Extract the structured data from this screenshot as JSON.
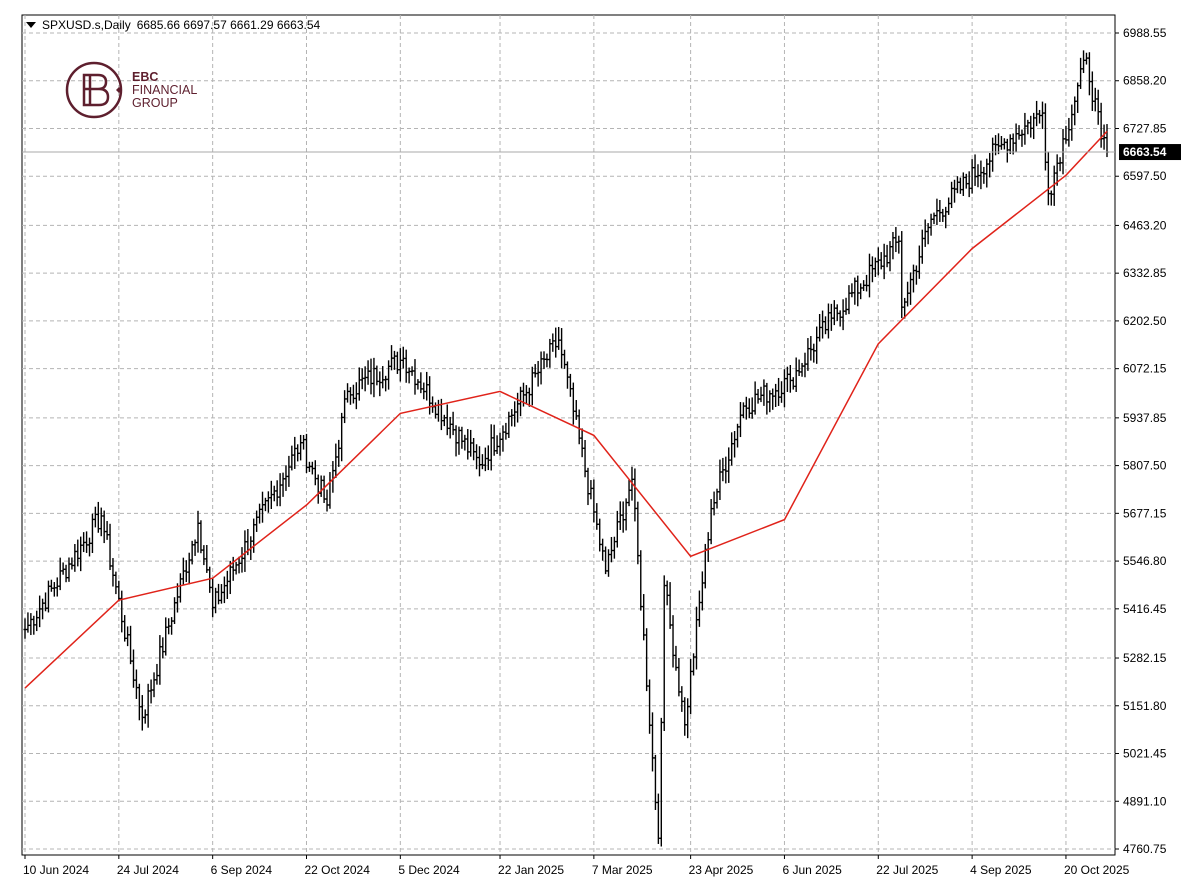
{
  "header": {
    "symbol": "SPXUSD.s,Daily",
    "ohlc": "6685.66 6697.57 6661.29 6663.54"
  },
  "logo": {
    "line1": "EBC",
    "line2": "FINANCIAL",
    "line3": "GROUP",
    "color": "#5e1f2e"
  },
  "colors": {
    "candles": "#000000",
    "ma_line": "#e0231a",
    "grid": "#b4b4b4",
    "current_price_bg": "#000000",
    "current_price_text": "#ffffff",
    "current_price_line": "#a9a9a9"
  },
  "chart_data": {
    "type": "line",
    "subtype": "ohlc-bars with moving average",
    "xlabel": "",
    "ylabel": "",
    "ylim": [
      4760.75,
      6988.55
    ],
    "grid": true,
    "x_ticks": [
      "10 Jun 2024",
      "24 Jul 2024",
      "6 Sep 2024",
      "22 Oct 2024",
      "5 Dec 2024",
      "22 Jan 2025",
      "7 Mar 2025",
      "23 Apr 2025",
      "6 Jun 2025",
      "22 Jul 2025",
      "4 Sep 2025",
      "20 Oct 2025"
    ],
    "y_ticks": [
      "6988.55",
      "6858.20",
      "6727.85",
      "6597.50",
      "6463.20",
      "6332.85",
      "6202.50",
      "6072.15",
      "5937.85",
      "5807.50",
      "5677.15",
      "5546.80",
      "5416.45",
      "5282.15",
      "5151.80",
      "5021.45",
      "4891.10",
      "4760.75"
    ],
    "current_price": "6663.54",
    "price_series": {
      "name": "",
      "x": [
        "10 Jun 2024",
        "24 Jul 2024",
        "6 Sep 2024",
        "22 Oct 2024",
        "5 Dec 2024",
        "22 Jan 2025",
        "7 Mar 2025",
        "23 Apr 2025",
        "6 Jun 2025",
        "22 Jul 2025",
        "4 Sep 2025",
        "20 Oct 2025"
      ],
      "y": [
        5360,
        5430,
        5440,
        5840,
        6080,
        6100,
        5770,
        5460,
        6010,
        6330,
        6520,
        6740
      ],
      "key_points": [
        {
          "x": "10 Jun 2024",
          "y": 5360
        },
        {
          "x": "16 Jul 2024",
          "y": 5670
        },
        {
          "x": "5 Aug 2024",
          "y": 5120
        },
        {
          "x": "30 Aug 2024",
          "y": 5650
        },
        {
          "x": "6 Sep 2024",
          "y": 5420
        },
        {
          "x": "18 Oct 2024",
          "y": 5870
        },
        {
          "x": "31 Oct 2024",
          "y": 5700
        },
        {
          "x": "11 Nov 2024",
          "y": 6010
        },
        {
          "x": "6 Dec 2024",
          "y": 6100
        },
        {
          "x": "13 Jan 2025",
          "y": 5810
        },
        {
          "x": "19 Feb 2025",
          "y": 6150
        },
        {
          "x": "13 Mar 2025",
          "y": 5520
        },
        {
          "x": "26 Mar 2025",
          "y": 5770
        },
        {
          "x": "8 Apr 2025",
          "y": 4790
        },
        {
          "x": "10 Apr 2025",
          "y": 5480
        },
        {
          "x": "21 Apr 2025",
          "y": 5100
        },
        {
          "x": "2 May 2025",
          "y": 5690
        },
        {
          "x": "19 May 2025",
          "y": 5970
        },
        {
          "x": "10 Jun 2025",
          "y": 6040
        },
        {
          "x": "30 Jun 2025",
          "y": 6210
        },
        {
          "x": "31 Jul 2025",
          "y": 6420
        },
        {
          "x": "1 Aug 2025",
          "y": 6240
        },
        {
          "x": "15 Aug 2025",
          "y": 6480
        },
        {
          "x": "19 Sep 2025",
          "y": 6690
        },
        {
          "x": "8 Oct 2025",
          "y": 6770
        },
        {
          "x": "10 Oct 2025",
          "y": 6550
        },
        {
          "x": "29 Oct 2025",
          "y": 6920
        },
        {
          "x": "5 Nov 2025",
          "y": 6700
        },
        {
          "x": "7 Nov 2025",
          "y": 6663.54
        }
      ]
    },
    "ma_series": {
      "name": "",
      "x": [
        "10 Jun 2024",
        "24 Jul 2024",
        "6 Sep 2024",
        "22 Oct 2024",
        "5 Dec 2024",
        "22 Jan 2025",
        "7 Mar 2025",
        "23 Apr 2025",
        "6 Jun 2025",
        "22 Jul 2025",
        "4 Sep 2025",
        "20 Oct 2025",
        "7 Nov 2025"
      ],
      "y": [
        5200,
        5440,
        5500,
        5700,
        5950,
        6010,
        5890,
        5560,
        5660,
        6140,
        6400,
        6600,
        6720
      ]
    }
  }
}
